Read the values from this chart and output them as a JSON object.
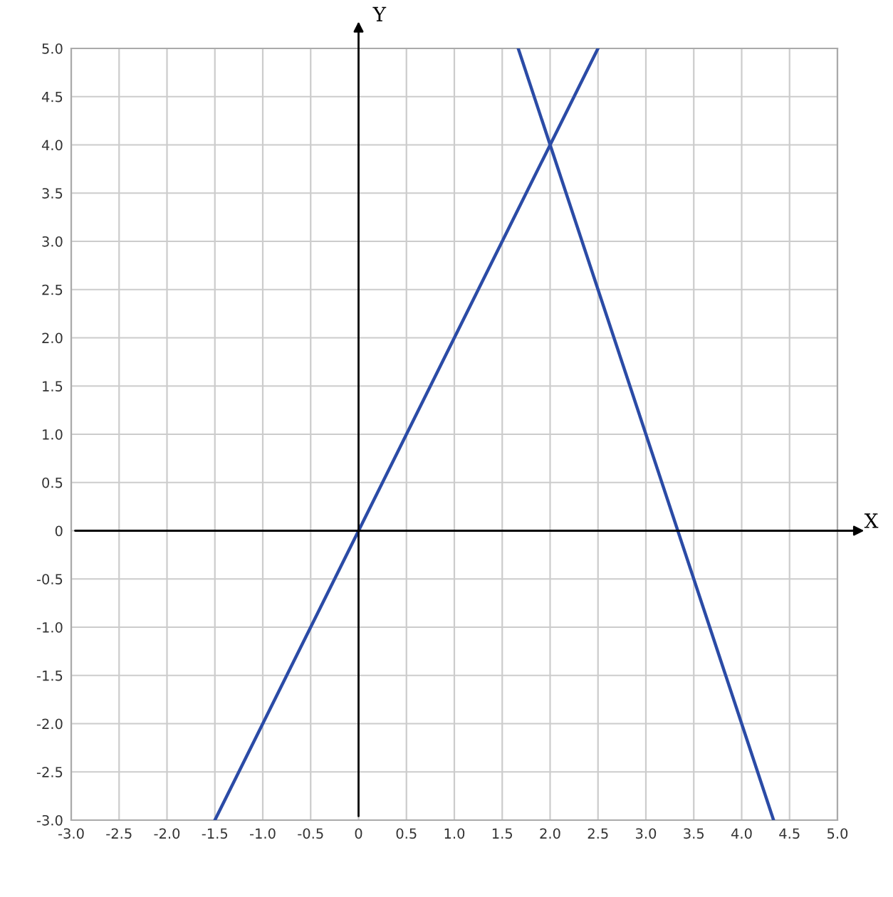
{
  "chart_data": {
    "type": "line",
    "xlabel": "X",
    "ylabel": "Y",
    "series": [
      {
        "color": "#2b4ba6",
        "x": [
          -1.5,
          2.5
        ],
        "values": [
          -3,
          5
        ]
      },
      {
        "color": "#2b4ba6",
        "x": [
          1.667,
          4.333
        ],
        "values": [
          5,
          -3
        ]
      }
    ],
    "xlim": [
      -3,
      5
    ],
    "ylim": [
      -3,
      5
    ],
    "xticks": [
      {
        "value": -3,
        "label": "-3.0"
      },
      -2.5,
      {
        "value": -2,
        "label": "-2.0"
      },
      -1.5,
      {
        "value": -1,
        "label": "-1.0"
      },
      -0.5,
      0,
      0.5,
      {
        "value": 1,
        "label": "1.0"
      },
      1.5,
      {
        "value": 2,
        "label": "2.0"
      },
      2.5,
      {
        "value": 3,
        "label": "3.0"
      },
      3.5,
      {
        "value": 4,
        "label": "4.0"
      },
      4.5,
      {
        "value": 5,
        "label": "5.0"
      }
    ],
    "yticks": [
      {
        "value": -3,
        "label": "-3.0"
      },
      -2.5,
      {
        "value": -2,
        "label": "-2.0"
      },
      -1.5,
      {
        "value": -1,
        "label": "-1.0"
      },
      -0.5,
      0,
      0.5,
      {
        "value": 1,
        "label": "1.0"
      },
      1.5,
      {
        "value": 2,
        "label": "2.0"
      },
      2.5,
      {
        "value": 3,
        "label": "3.0"
      },
      3.5,
      {
        "value": 4,
        "label": "4.0"
      },
      4.5,
      {
        "value": 5,
        "label": "5.0"
      }
    ],
    "grid": true,
    "marker": "none",
    "line_style": "solid"
  }
}
